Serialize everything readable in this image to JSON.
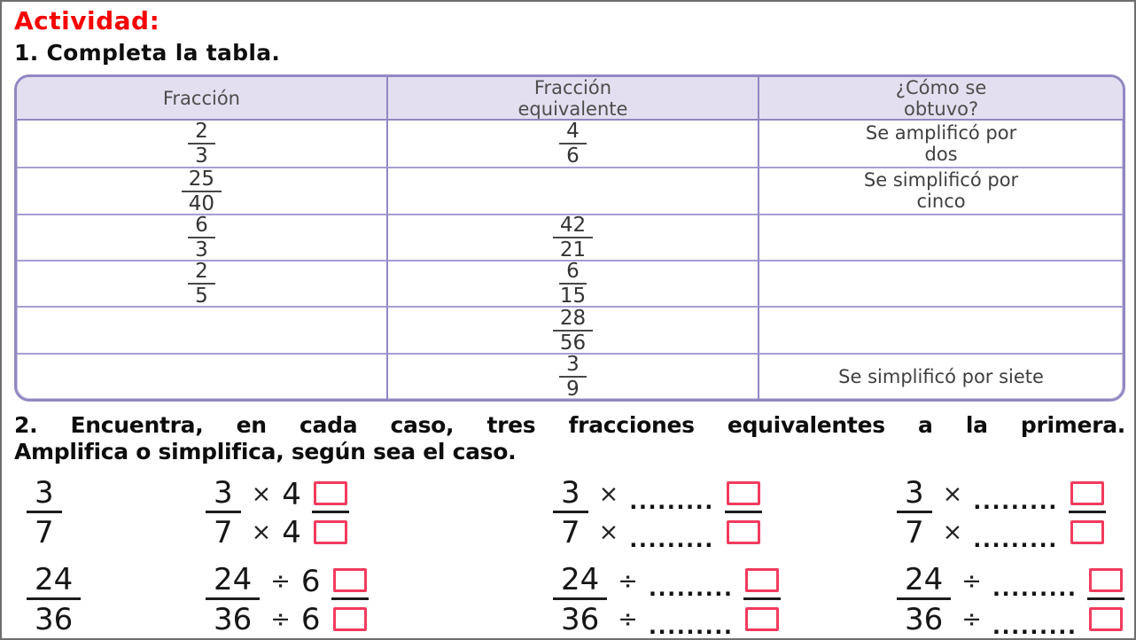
{
  "page": {
    "activity_label": "Actividad:",
    "task1_title": "1. Completa la tabla.",
    "task2_line1": "2. Encuentra, en cada caso, tres fracciones equivalentes a la primera.",
    "task2_line2": "Amplifica o simplifica, según sea el caso."
  },
  "colors": {
    "accent_red": "#f70000",
    "table_border_purple": "#9287c2",
    "table_header_bg": "#e3dff0",
    "answer_box_red": "#f23b5e"
  },
  "table": {
    "headers": [
      "Fracción",
      "Fracción equivalente",
      "¿Cómo se obtuvo?"
    ],
    "rows": [
      {
        "fraction": {
          "num": "2",
          "den": "3"
        },
        "equivalent": {
          "num": "4",
          "den": "6"
        },
        "how": "Se amplificó por dos"
      },
      {
        "fraction": {
          "num": "25",
          "den": "40"
        },
        "equivalent": null,
        "how": "Se simplificó por cinco"
      },
      {
        "fraction": {
          "num": "6",
          "den": "3"
        },
        "equivalent": {
          "num": "42",
          "den": "21"
        },
        "how": ""
      },
      {
        "fraction": {
          "num": "2",
          "den": "5"
        },
        "equivalent": {
          "num": "6",
          "den": "15"
        },
        "how": ""
      },
      {
        "fraction": null,
        "equivalent": {
          "num": "28",
          "den": "56"
        },
        "how": ""
      },
      {
        "fraction": null,
        "equivalent": {
          "num": "3",
          "den": "9"
        },
        "how": "Se simplificó por siete"
      }
    ]
  },
  "exercise2": {
    "rows": [
      {
        "lead": {
          "num": "3",
          "den": "7"
        },
        "groups": [
          {
            "operator": "×",
            "top_operand": "4",
            "bottom_operand": "4"
          },
          {
            "operator": "×",
            "top_operand": ".........",
            "bottom_operand": "........."
          },
          {
            "operator": "×",
            "top_operand": ".........",
            "bottom_operand": "........."
          }
        ]
      },
      {
        "lead": {
          "num": "24",
          "den": "36"
        },
        "groups": [
          {
            "operator": "÷",
            "top_operand": "6",
            "bottom_operand": "6"
          },
          {
            "operator": "÷",
            "top_operand": ".........",
            "bottom_operand": "........."
          },
          {
            "operator": "÷",
            "top_operand": ".........",
            "bottom_operand": "........."
          }
        ]
      }
    ]
  }
}
